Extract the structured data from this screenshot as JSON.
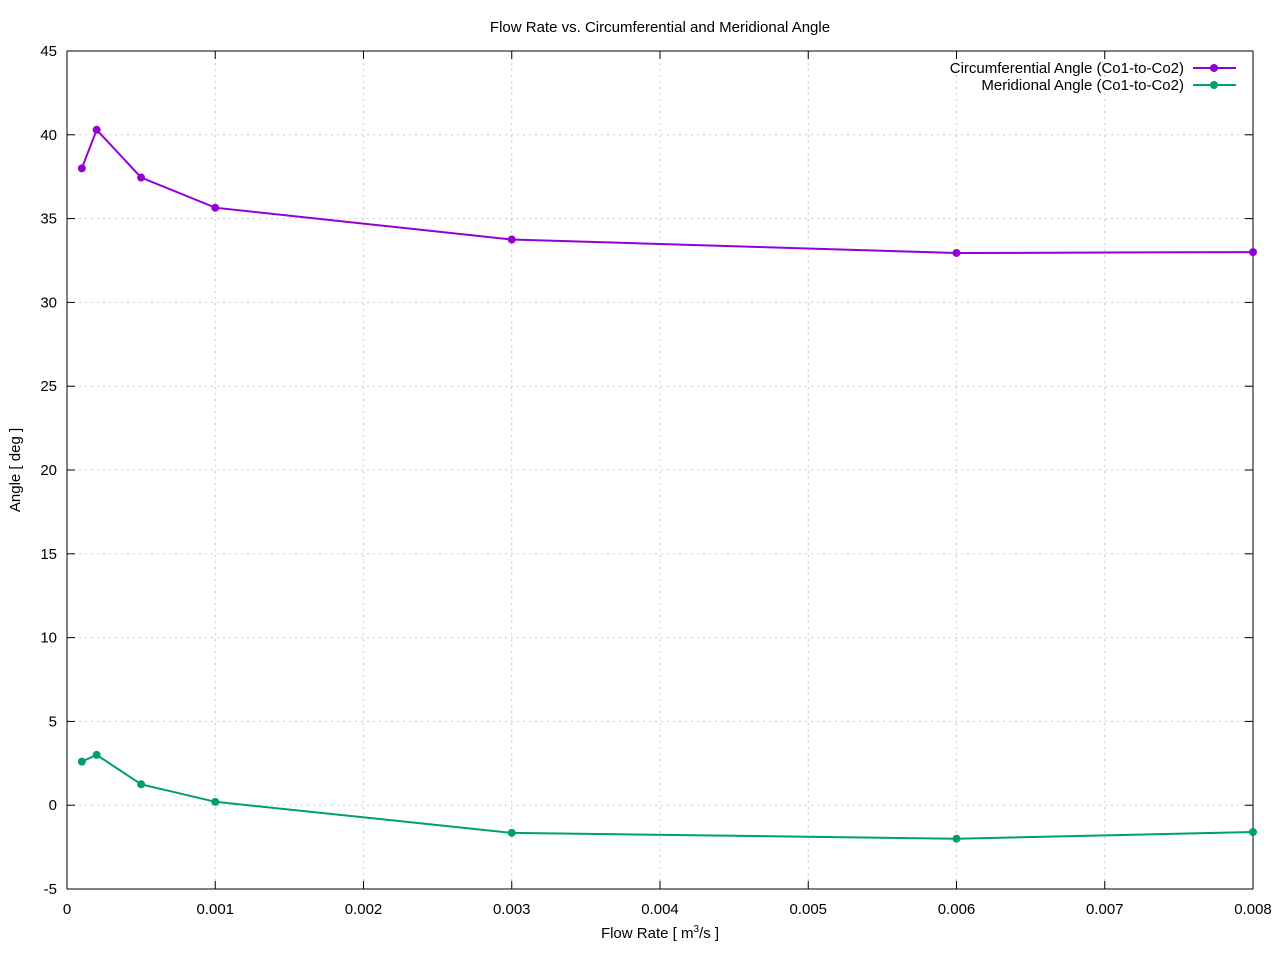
{
  "chart_data": {
    "type": "line",
    "title": "Flow Rate vs. Circumferential and Meridional Angle",
    "xlabel_prefix": "Flow Rate [ m",
    "xlabel_sup": "3",
    "xlabel_suffix": "/s ]",
    "ylabel": "Angle [ deg ]",
    "xlim": [
      0,
      0.008
    ],
    "ylim": [
      -5,
      45
    ],
    "x_ticks": [
      "0",
      "0.001",
      "0.002",
      "0.003",
      "0.004",
      "0.005",
      "0.006",
      "0.007",
      "0.008"
    ],
    "y_ticks": [
      "-5",
      "0",
      "5",
      "10",
      "15",
      "20",
      "25",
      "30",
      "35",
      "40",
      "45"
    ],
    "grid": true,
    "legend_position": "top-right",
    "x": [
      0.0001,
      0.0002,
      0.0005,
      0.001,
      0.003,
      0.006,
      0.008
    ],
    "series": [
      {
        "name": "Circumferential Angle (Co1-to-Co2)",
        "color": "#9400d3",
        "values": [
          38.0,
          40.3,
          37.45,
          35.65,
          33.75,
          32.95,
          33.0
        ]
      },
      {
        "name": "Meridional Angle (Co1-to-Co2)",
        "color": "#009e73",
        "values": [
          2.6,
          3.0,
          1.25,
          0.2,
          -1.65,
          -2.0,
          -1.6
        ]
      }
    ]
  }
}
